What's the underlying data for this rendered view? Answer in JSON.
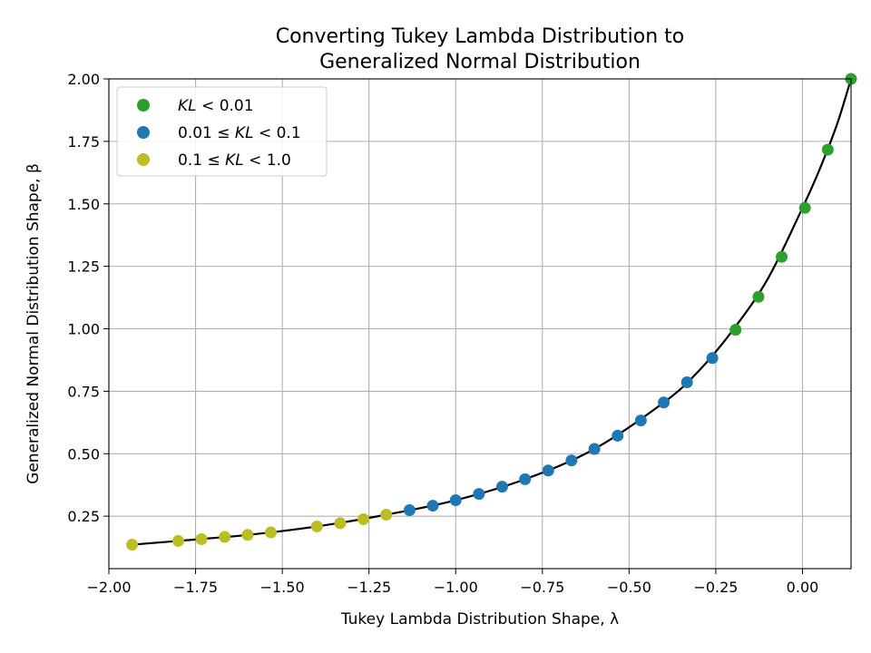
{
  "chart_data": {
    "type": "scatter",
    "title_lines": [
      "Converting Tukey Lambda Distribution to",
      "Generalized Normal Distribution"
    ],
    "xlabel": "Tukey Lambda Distribution Shape, λ",
    "ylabel": "Generalized Normal Distribution Shape, β",
    "xlim": [
      -2.0,
      0.14
    ],
    "ylim": [
      0.04,
      2.0
    ],
    "xticks": [
      -2.0,
      -1.75,
      -1.5,
      -1.25,
      -1.0,
      -0.75,
      -0.5,
      -0.25,
      0.0
    ],
    "xtick_labels": [
      "−2.00",
      "−1.75",
      "−1.50",
      "−1.25",
      "−1.00",
      "−0.75",
      "−0.50",
      "−0.25",
      "0.00"
    ],
    "yticks": [
      0.25,
      0.5,
      0.75,
      1.0,
      1.25,
      1.5,
      1.75,
      2.0
    ],
    "ytick_labels": [
      "0.25",
      "0.50",
      "0.75",
      "1.00",
      "1.25",
      "1.50",
      "1.75",
      "2.00"
    ],
    "grid": true,
    "legend_position": "top-left",
    "series": [
      {
        "name": "KL < 0.01",
        "legend": {
          "kl": "KL",
          "lt": " < ",
          "high": "0.01"
        },
        "color": "#2ca02c",
        "x": [
          -0.193,
          -0.127,
          -0.06,
          0.007,
          0.073,
          0.14
        ],
        "y": [
          0.996,
          1.128,
          1.288,
          1.484,
          1.717,
          2.0
        ]
      },
      {
        "name": "0.01 ≤ KL < 0.1",
        "legend": {
          "low": "0.01",
          "le": " ≤ ",
          "kl": "KL",
          "lt": " < ",
          "high": "0.1"
        },
        "color": "#1f77b4",
        "x": [
          -1.133,
          -1.066,
          -1.0,
          -0.933,
          -0.866,
          -0.8,
          -0.733,
          -0.666,
          -0.6,
          -0.533,
          -0.466,
          -0.4,
          -0.333,
          -0.26
        ],
        "y": [
          0.274,
          0.292,
          0.314,
          0.339,
          0.368,
          0.398,
          0.433,
          0.473,
          0.519,
          0.572,
          0.633,
          0.705,
          0.786,
          0.883
        ]
      },
      {
        "name": "0.1 ≤ KL < 1.0",
        "legend": {
          "low": "0.1",
          "le": " ≤ ",
          "kl": "KL",
          "lt": " < ",
          "high": "1.0"
        },
        "color": "#bcbd22",
        "x": [
          -1.933,
          -1.8,
          -1.733,
          -1.666,
          -1.6,
          -1.533,
          -1.4,
          -1.333,
          -1.266,
          -1.2
        ],
        "y": [
          0.136,
          0.151,
          0.158,
          0.167,
          0.175,
          0.185,
          0.209,
          0.222,
          0.238,
          0.256
        ]
      }
    ],
    "fit_line": {
      "color": "#000000",
      "x": [
        -1.933,
        -1.8,
        -1.6,
        -1.4,
        -1.2,
        -1.0,
        -0.8,
        -0.6,
        -0.4,
        -0.3,
        -0.2,
        -0.1,
        0.0,
        0.05,
        0.1,
        0.14
      ],
      "y": [
        0.136,
        0.151,
        0.175,
        0.209,
        0.256,
        0.314,
        0.398,
        0.519,
        0.705,
        0.83,
        0.996,
        1.2,
        1.484,
        1.64,
        1.82,
        2.0
      ]
    }
  }
}
